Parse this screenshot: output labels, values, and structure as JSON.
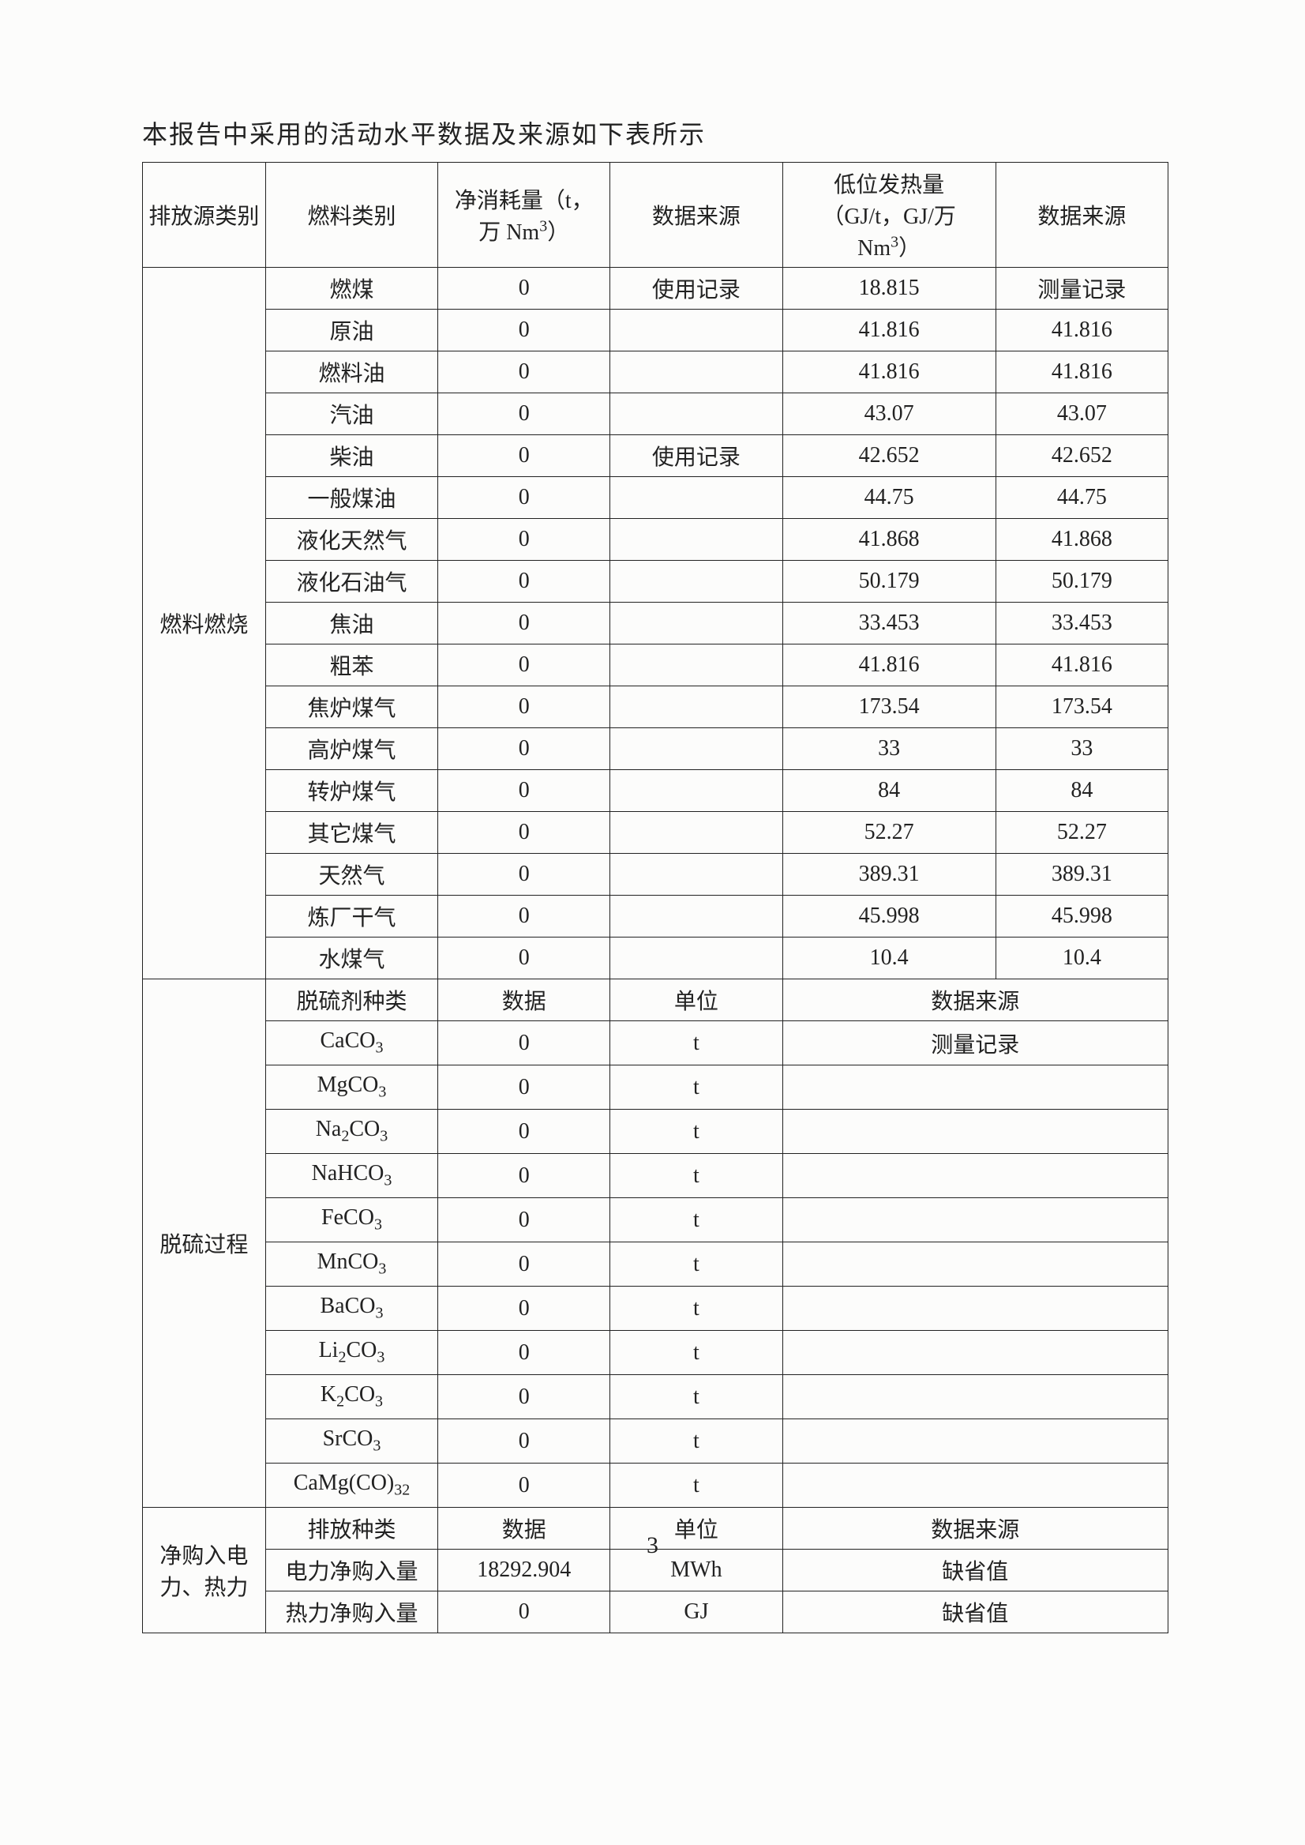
{
  "title": "本报告中采用的活动水平数据及来源如下表所示",
  "headers": {
    "h1": "排放源类别",
    "h2": "燃料类别",
    "h3_a": "净消耗量（t，",
    "h3_b": "万 Nm",
    "h3_c": "）",
    "h4": "数据来源",
    "h5_a": "低位发热量",
    "h5_b": "（GJ/t，GJ/万",
    "h5_c": "Nm",
    "h5_d": "）",
    "h6": "数据来源"
  },
  "s1_label": "燃料燃烧",
  "s1": [
    {
      "fuel": "燃煤",
      "v": "0",
      "src": "使用记录",
      "cal": "18.815",
      "csrc": "测量记录"
    },
    {
      "fuel": "原油",
      "v": "0",
      "src": "",
      "cal": "41.816",
      "csrc": "41.816"
    },
    {
      "fuel": "燃料油",
      "v": "0",
      "src": "",
      "cal": "41.816",
      "csrc": "41.816"
    },
    {
      "fuel": "汽油",
      "v": "0",
      "src": "",
      "cal": "43.07",
      "csrc": "43.07"
    },
    {
      "fuel": "柴油",
      "v": "0",
      "src": "使用记录",
      "cal": "42.652",
      "csrc": "42.652"
    },
    {
      "fuel": "一般煤油",
      "v": "0",
      "src": "",
      "cal": "44.75",
      "csrc": "44.75"
    },
    {
      "fuel": "液化天然气",
      "v": "0",
      "src": "",
      "cal": "41.868",
      "csrc": "41.868"
    },
    {
      "fuel": "液化石油气",
      "v": "0",
      "src": "",
      "cal": "50.179",
      "csrc": "50.179"
    },
    {
      "fuel": "焦油",
      "v": "0",
      "src": "",
      "cal": "33.453",
      "csrc": "33.453"
    },
    {
      "fuel": "粗苯",
      "v": "0",
      "src": "",
      "cal": "41.816",
      "csrc": "41.816"
    },
    {
      "fuel": "焦炉煤气",
      "v": "0",
      "src": "",
      "cal": "173.54",
      "csrc": "173.54"
    },
    {
      "fuel": "高炉煤气",
      "v": "0",
      "src": "",
      "cal": "33",
      "csrc": "33"
    },
    {
      "fuel": "转炉煤气",
      "v": "0",
      "src": "",
      "cal": "84",
      "csrc": "84"
    },
    {
      "fuel": "其它煤气",
      "v": "0",
      "src": "",
      "cal": "52.27",
      "csrc": "52.27"
    },
    {
      "fuel": "天然气",
      "v": "0",
      "src": "",
      "cal": "389.31",
      "csrc": "389.31"
    },
    {
      "fuel": "炼厂干气",
      "v": "0",
      "src": "",
      "cal": "45.998",
      "csrc": "45.998"
    },
    {
      "fuel": "水煤气",
      "v": "0",
      "src": "",
      "cal": "10.4",
      "csrc": "10.4"
    }
  ],
  "s2_label": "脱硫过程",
  "s2_head": {
    "c1": "脱硫剂种类",
    "c2": "数据",
    "c3": "单位",
    "c4": "数据来源"
  },
  "s2": [
    {
      "n": "CaCO",
      "sub": "3",
      "v": "0",
      "u": "t",
      "src": "测量记录"
    },
    {
      "n": "MgCO",
      "sub": "3",
      "v": "0",
      "u": "t",
      "src": ""
    },
    {
      "n": "Na",
      "sub2": "2",
      "n2": "CO",
      "sub": "3",
      "v": "0",
      "u": "t",
      "src": ""
    },
    {
      "n": "NaHCO",
      "sub": "3",
      "v": "0",
      "u": "t",
      "src": ""
    },
    {
      "n": "FeCO",
      "sub": "3",
      "v": "0",
      "u": "t",
      "src": ""
    },
    {
      "n": "MnCO",
      "sub": "3",
      "v": "0",
      "u": "t",
      "src": ""
    },
    {
      "n": "BaCO",
      "sub": "3",
      "v": "0",
      "u": "t",
      "src": ""
    },
    {
      "n": "Li",
      "sub2": "2",
      "n2": "CO",
      "sub": "3",
      "v": "0",
      "u": "t",
      "src": ""
    },
    {
      "n": "K",
      "sub2": "2",
      "n2": "CO",
      "sub": "3",
      "v": "0",
      "u": "t",
      "src": ""
    },
    {
      "n": "SrCO",
      "sub": "3",
      "v": "0",
      "u": "t",
      "src": ""
    },
    {
      "n": "CaMg(CO",
      "sub": "3",
      "n2": ")",
      "sub2b": "2",
      "v": "0",
      "u": "t",
      "src": ""
    }
  ],
  "s3_label_a": "净购入电",
  "s3_label_b": "力、热力",
  "s3_head": {
    "c1": "排放种类",
    "c2": "数据",
    "c3": "单位",
    "c4": "数据来源"
  },
  "s3": [
    {
      "n": "电力净购入量",
      "v": "18292.904",
      "u": "MWh",
      "src": "缺省值"
    },
    {
      "n": "热力净购入量",
      "v": "0",
      "u": "GJ",
      "src": "缺省值"
    }
  ],
  "pagenum": "3",
  "colwidths": [
    "150",
    "200",
    "200",
    "200",
    "250",
    "200"
  ]
}
